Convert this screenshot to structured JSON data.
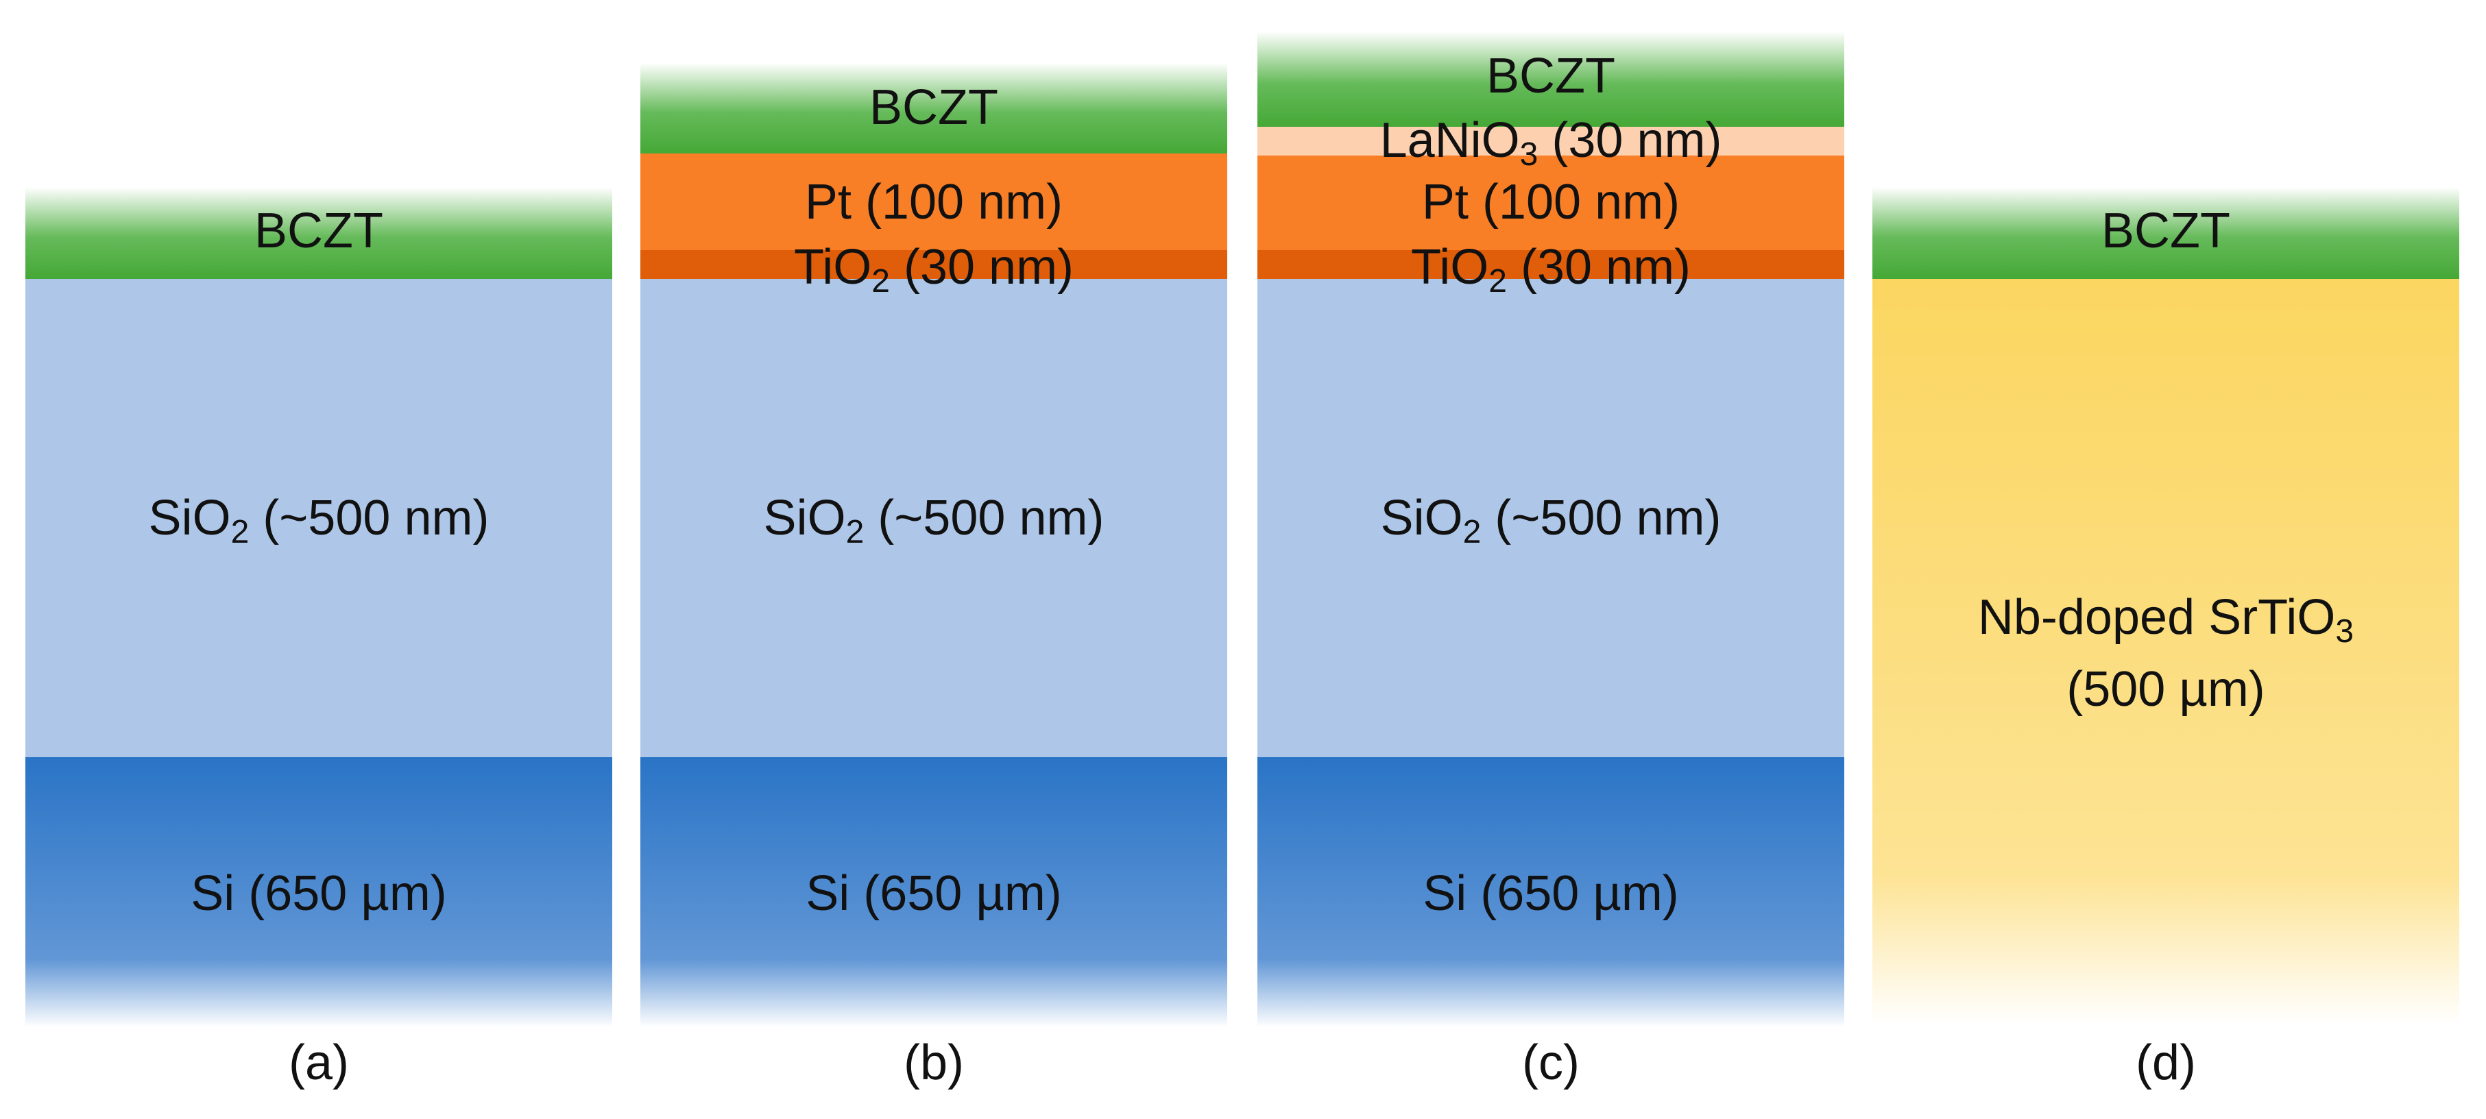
{
  "panels": [
    {
      "caption": "(a)",
      "layers": [
        {
          "label": [
            [
              "BCZT"
            ]
          ]
        },
        {
          "label": [
            [
              "SiO",
              "2",
              " (~500 nm)"
            ]
          ]
        },
        {
          "label": [
            [
              "Si (650 µm)"
            ]
          ]
        }
      ]
    },
    {
      "caption": "(b)",
      "layers": [
        {
          "label": [
            [
              "BCZT"
            ]
          ]
        },
        {
          "label": [
            [
              "Pt (100 nm)"
            ]
          ]
        },
        {
          "label": [
            [
              "TiO",
              "2",
              " (30 nm)"
            ]
          ]
        },
        {
          "label": [
            [
              "SiO",
              "2",
              " (~500 nm)"
            ]
          ]
        },
        {
          "label": [
            [
              "Si (650 µm)"
            ]
          ]
        }
      ]
    },
    {
      "caption": "(c)",
      "layers": [
        {
          "label": [
            [
              "BCZT"
            ]
          ]
        },
        {
          "label": [
            [
              "LaNiO",
              "3",
              " (30 nm)"
            ]
          ]
        },
        {
          "label": [
            [
              "Pt (100 nm)"
            ]
          ]
        },
        {
          "label": [
            [
              "TiO",
              "2",
              " (30 nm)"
            ]
          ]
        },
        {
          "label": [
            [
              "SiO",
              "2",
              " (~500 nm)"
            ]
          ]
        },
        {
          "label": [
            [
              "Si (650 µm)"
            ]
          ]
        }
      ]
    },
    {
      "caption": "(d)",
      "layers": [
        {
          "label": [
            [
              "BCZT"
            ]
          ]
        },
        {
          "label": [
            [
              "Nb-doped SrTiO",
              "3"
            ],
            [
              "(500 µm)"
            ]
          ]
        }
      ]
    }
  ]
}
